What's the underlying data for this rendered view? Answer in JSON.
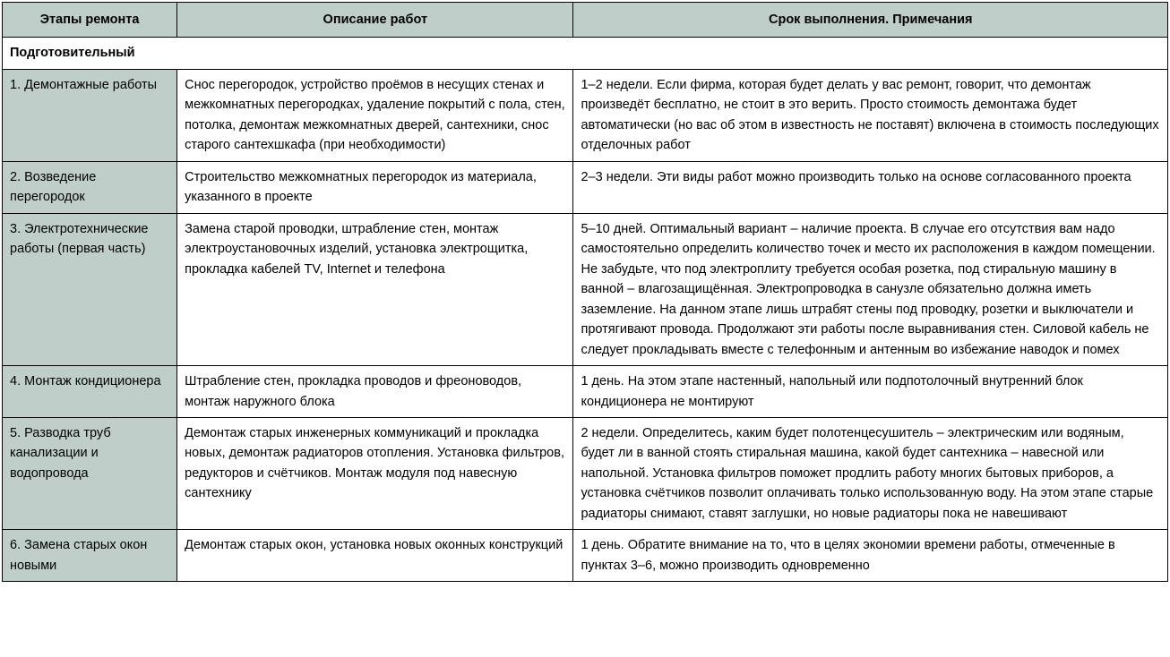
{
  "colors": {
    "header_bg": "#bfcec9",
    "stage_bg": "#bfcec9",
    "cell_bg": "#ffffff",
    "border": "#000000"
  },
  "table": {
    "columns": [
      {
        "label": "Этапы ремонта",
        "width": "15%"
      },
      {
        "label": "Описание работ",
        "width": "34%"
      },
      {
        "label": "Срок выполнения. Примечания",
        "width": "51%"
      }
    ],
    "section_title": "Подготовительный",
    "rows": [
      {
        "stage": "1. Демонтажные работы",
        "desc": "Снос перегородок, устройство проёмов в несущих стенах и межкомнатных перегородках, удаление покрытий с пола, стен, потолка, демонтаж межкомнатных дверей, сантехники, снос старого сантехшкафа (при необходимости)",
        "notes": "1–2 недели. Если фирма, которая будет делать у вас ремонт, говорит, что демонтаж произведёт бесплатно, не стоит в это верить. Просто стоимость демонтажа будет автоматически (но вас об этом в известность не поставят) включена в стоимость последующих отделочных работ"
      },
      {
        "stage": "2. Возведение перегородок",
        "desc": "Строительство межкомнатных перегородок из материала, указанного в проекте",
        "notes": "2–3 недели. Эти виды работ можно производить только на основе согласованного проекта"
      },
      {
        "stage": "3. Электротехнические работы (первая часть)",
        "desc": "Замена старой проводки, штрабление стен, монтаж электроустановочных изделий, установка электрощитка, прокладка кабелей TV, Internet и телефона",
        "notes": "5–10 дней. Оптимальный вариант – наличие проекта. В случае его отсутствия вам надо самостоятельно определить количество точек и место их расположения в каждом помещении. Не забудьте, что под электроплиту требуется особая розетка, под стиральную машину в ванной – влагозащищённая. Электропроводка в санузле обязательно должна иметь заземление. На данном этапе лишь штрабят стены под проводку, розетки и выключатели и протягивают провода. Продолжают эти работы после выравнивания стен. Силовой кабель не следует прокладывать вместе с телефонным и антенным во избежание наводок и помех"
      },
      {
        "stage": "4. Монтаж кондиционера",
        "desc": "Штрабление стен, прокладка проводов и фреоноводов, монтаж наружного блока",
        "notes": "1 день. На этом этапе настенный, напольный или подпотолочный внутренний блок кондиционера не монтируют"
      },
      {
        "stage": "5. Разводка труб канализации и водопровода",
        "desc": "Демонтаж старых инженерных коммуникаций и прокладка новых, демонтаж радиаторов отопления. Установка фильтров, редукторов и счётчиков. Монтаж модуля под навесную сантехнику",
        "notes": "2 недели. Определитесь, каким будет полотенцесушитель – электрическим или водяным, будет ли в ванной стоять стиральная машина, какой будет сантехника – навесной или напольной. Установка фильтров поможет продлить работу многих бытовых приборов, а установка счётчиков позволит оплачивать только использованную воду. На этом этапе старые радиаторы снимают, ставят заглушки, но новые радиаторы пока не навешивают"
      },
      {
        "stage": "6. Замена старых окон новыми",
        "desc": "Демонтаж старых окон, установка новых оконных конструкций",
        "notes": "1 день. Обратите внимание на то, что в целях экономии времени работы, отмеченные в пунктах 3–6, можно производить одновременно"
      }
    ]
  }
}
